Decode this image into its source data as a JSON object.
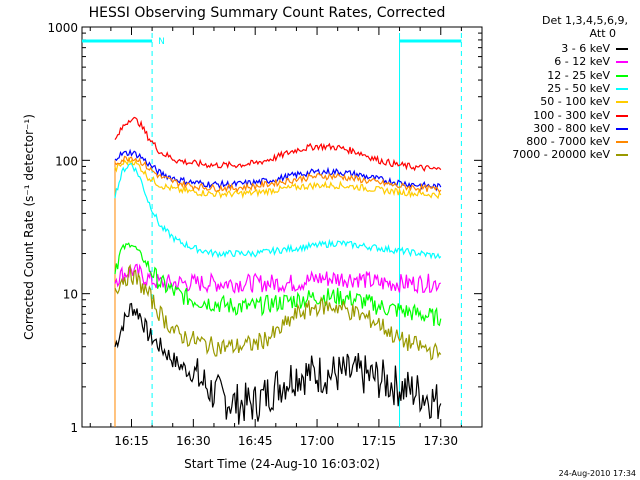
{
  "chart_data": {
    "type": "line",
    "title": "HESSI Observing Summary Count Rates, Corrected",
    "xlabel": "Start Time (24-Aug-10 16:03:02)",
    "ylabel": "Corrected Count Rate (s⁻¹ detector⁻¹)",
    "y_scale": "log",
    "ylim": [
      1,
      1000
    ],
    "y_ticks": [
      1,
      10,
      100,
      1000
    ],
    "y_tick_labels": [
      "1",
      "10",
      "100",
      "1000"
    ],
    "x_range_minutes": [
      "16:03",
      "17:40"
    ],
    "x_ticks": [
      "16:15",
      "16:30",
      "16:45",
      "17:00",
      "17:15",
      "17:30"
    ],
    "legend_header": [
      "Det 1,3,4,5,6,9,",
      "Att 0"
    ],
    "legend_position": "right",
    "series": [
      {
        "name": "3 - 6 keV",
        "color": "#000000",
        "x": [
          "16:11",
          "16:13",
          "16:15",
          "16:17",
          "16:19",
          "16:22",
          "16:26",
          "16:30",
          "16:35",
          "16:40",
          "16:45",
          "16:50",
          "16:55",
          "17:00",
          "17:05",
          "17:10",
          "17:15",
          "17:20",
          "17:25",
          "17:30"
        ],
        "y": [
          4,
          6,
          8,
          7,
          5,
          4,
          3,
          2.5,
          1.8,
          1.5,
          1.5,
          2,
          2.5,
          2.5,
          2.5,
          2.5,
          2.3,
          2,
          1.8,
          1.5
        ]
      },
      {
        "name": "6 - 12 keV",
        "color": "#ff00ff",
        "x": [
          "16:11",
          "16:13",
          "16:15",
          "16:17",
          "16:19",
          "16:22",
          "16:26",
          "16:30",
          "16:35",
          "16:40",
          "16:45",
          "16:50",
          "16:55",
          "17:00",
          "17:05",
          "17:10",
          "17:15",
          "17:20",
          "17:25",
          "17:30"
        ],
        "y": [
          13,
          14,
          15,
          14,
          13,
          12,
          12,
          12,
          12,
          12,
          12,
          12,
          12,
          13,
          13,
          13,
          12,
          12,
          12,
          12
        ]
      },
      {
        "name": "12 - 25 keV",
        "color": "#00ff00",
        "x": [
          "16:11",
          "16:13",
          "16:15",
          "16:17",
          "16:19",
          "16:22",
          "16:26",
          "16:30",
          "16:35",
          "16:40",
          "16:45",
          "16:50",
          "16:55",
          "17:00",
          "17:05",
          "17:10",
          "17:15",
          "17:20",
          "17:25",
          "17:30"
        ],
        "y": [
          16,
          22,
          24,
          20,
          16,
          12,
          10,
          9,
          8.5,
          8,
          8,
          8.5,
          9,
          9.5,
          9.5,
          9,
          8,
          7.5,
          7,
          6.5
        ]
      },
      {
        "name": "25 - 50 keV",
        "color": "#00ffff",
        "x": [
          "16:11",
          "16:13",
          "16:15",
          "16:17",
          "16:19",
          "16:22",
          "16:26",
          "16:30",
          "16:35",
          "16:40",
          "16:45",
          "16:50",
          "16:55",
          "17:00",
          "17:05",
          "17:10",
          "17:15",
          "17:20",
          "17:25",
          "17:30"
        ],
        "y": [
          55,
          85,
          95,
          75,
          50,
          32,
          25,
          22,
          20,
          20,
          20,
          21,
          22,
          23,
          24,
          23,
          22,
          21,
          20,
          19
        ]
      },
      {
        "name": "50 - 100 keV",
        "color": "#ffcc00",
        "x": [
          "16:11",
          "16:13",
          "16:15",
          "16:17",
          "16:19",
          "16:22",
          "16:26",
          "16:30",
          "16:35",
          "16:40",
          "16:45",
          "16:50",
          "16:55",
          "17:00",
          "17:05",
          "17:10",
          "17:15",
          "17:20",
          "17:25",
          "17:30"
        ],
        "y": [
          85,
          95,
          100,
          90,
          75,
          65,
          60,
          58,
          56,
          56,
          57,
          60,
          63,
          65,
          65,
          63,
          60,
          58,
          56,
          55
        ]
      },
      {
        "name": "100 - 300 keV",
        "color": "#ff0000",
        "x": [
          "16:11",
          "16:13",
          "16:15",
          "16:17",
          "16:19",
          "16:22",
          "16:26",
          "16:30",
          "16:35",
          "16:40",
          "16:45",
          "16:50",
          "16:55",
          "17:00",
          "17:05",
          "17:10",
          "17:15",
          "17:20",
          "17:25",
          "17:30"
        ],
        "y": [
          140,
          180,
          210,
          190,
          150,
          115,
          100,
          95,
          92,
          92,
          95,
          105,
          120,
          128,
          125,
          115,
          100,
          92,
          88,
          85
        ]
      },
      {
        "name": "300 - 800 keV",
        "color": "#0000ff",
        "x": [
          "16:11",
          "16:13",
          "16:15",
          "16:17",
          "16:19",
          "16:22",
          "16:26",
          "16:30",
          "16:35",
          "16:40",
          "16:45",
          "16:50",
          "16:55",
          "17:00",
          "17:05",
          "17:10",
          "17:15",
          "17:20",
          "17:25",
          "17:30"
        ],
        "y": [
          105,
          112,
          115,
          108,
          95,
          80,
          72,
          68,
          66,
          66,
          68,
          72,
          78,
          82,
          82,
          78,
          72,
          68,
          65,
          63
        ]
      },
      {
        "name": "800 - 7000 keV",
        "color": "#ff8800",
        "x": [
          "16:11",
          "16:13",
          "16:15",
          "16:17",
          "16:19",
          "16:22",
          "16:26",
          "16:30",
          "16:35",
          "16:40",
          "16:45",
          "16:50",
          "16:55",
          "17:00",
          "17:05",
          "17:10",
          "17:15",
          "17:20",
          "17:25",
          "17:30"
        ],
        "y": [
          95,
          102,
          106,
          100,
          88,
          75,
          68,
          64,
          62,
          62,
          64,
          68,
          72,
          76,
          76,
          72,
          68,
          64,
          62,
          60
        ]
      },
      {
        "name": "7000 - 20000 keV",
        "color": "#999900",
        "x": [
          "16:11",
          "16:13",
          "16:15",
          "16:17",
          "16:19",
          "16:22",
          "16:26",
          "16:30",
          "16:35",
          "16:40",
          "16:45",
          "16:50",
          "16:55",
          "17:00",
          "17:05",
          "17:10",
          "17:15",
          "17:20",
          "17:25",
          "17:30"
        ],
        "y": [
          11,
          13,
          14,
          12,
          10,
          7,
          5,
          4.5,
          4,
          4,
          4.2,
          5,
          7,
          8,
          8,
          7,
          6,
          4.5,
          4,
          3.5
        ]
      }
    ],
    "annotations": {
      "attenuator_bar_color": "#00ffff",
      "attenuator_bar_label": "N",
      "data_gaps_solid": [
        "16:11",
        "17:20"
      ],
      "night_markers_dashed": [
        "16:20",
        "17:35"
      ]
    },
    "footer_stamp": "24-Aug-2010 17:34"
  }
}
